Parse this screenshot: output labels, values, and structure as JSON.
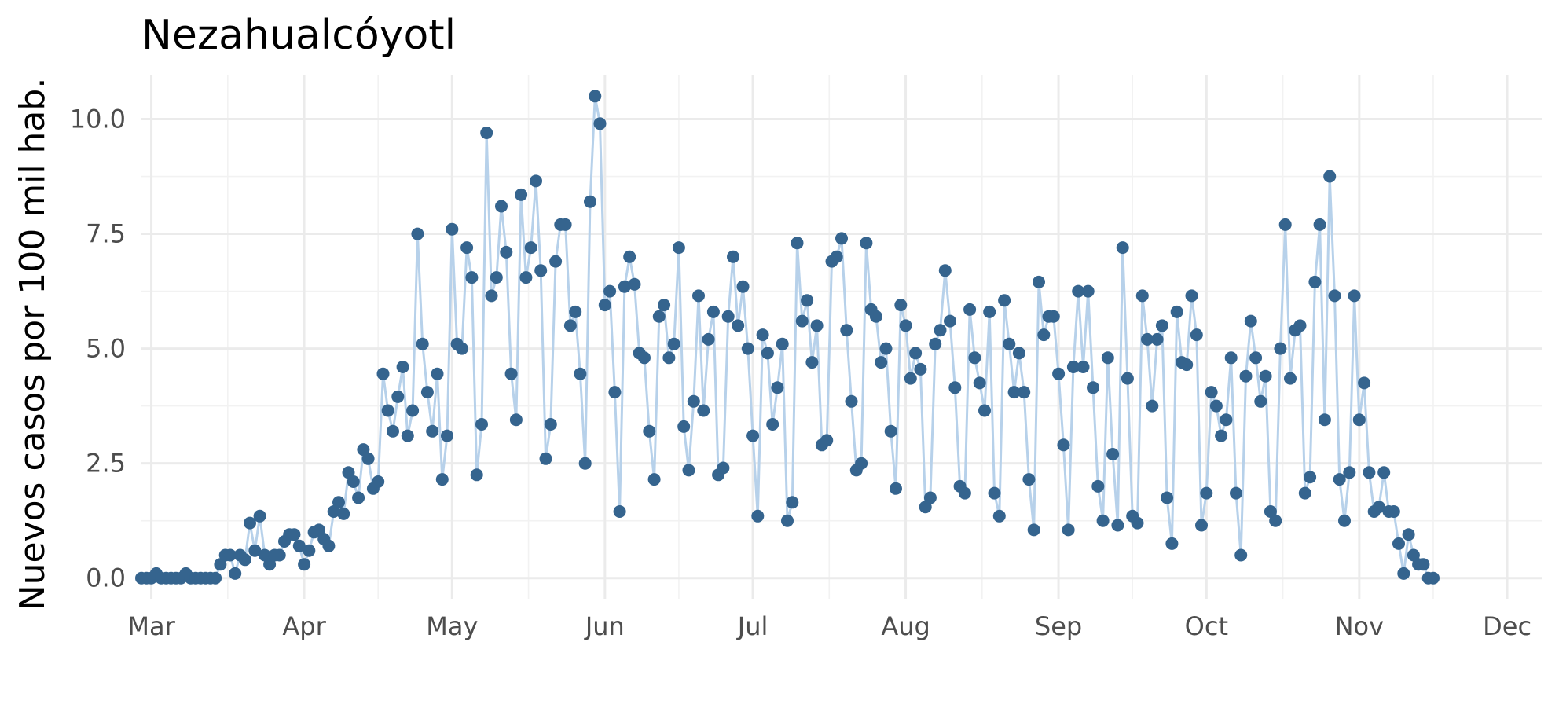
{
  "chart_data": {
    "type": "line",
    "title": "Nezahualcóyotl",
    "xlabel": "",
    "ylabel": "Nuevos casos por 100 mil hab.",
    "x_axis": {
      "type": "date",
      "range": [
        "2020-02-28",
        "2020-12-08"
      ],
      "tick_labels": [
        "Mar",
        "Apr",
        "May",
        "Jun",
        "Jul",
        "Aug",
        "Sep",
        "Oct",
        "Nov",
        "Dec"
      ],
      "tick_dates": [
        "2020-03-01",
        "2020-04-01",
        "2020-05-01",
        "2020-06-01",
        "2020-07-01",
        "2020-08-01",
        "2020-09-01",
        "2020-10-01",
        "2020-11-01",
        "2020-12-01"
      ]
    },
    "y_axis": {
      "range": [
        -0.45,
        10.95
      ],
      "ticks": [
        0,
        2.5,
        5,
        7.5,
        10
      ],
      "tick_labels": [
        "0.0",
        "2.5",
        "5.0",
        "7.5",
        "10.0"
      ]
    },
    "grid": true,
    "legend": "none",
    "colors": {
      "line": "#b7d1ea",
      "point": "#35648e"
    },
    "series": [
      {
        "x_start": "2020-02-28",
        "x_step_days": 1,
        "values": [
          0,
          0,
          0,
          0.1,
          0,
          0,
          0,
          0,
          0,
          0.1,
          0,
          0,
          0,
          0,
          0,
          0,
          0.3,
          0.5,
          0.5,
          0.1,
          0.5,
          0.4,
          1.2,
          0.6,
          1.35,
          0.5,
          0.3,
          0.5,
          0.5,
          0.8,
          0.95,
          0.95,
          0.7,
          0.3,
          0.6,
          1.0,
          1.05,
          0.85,
          0.7,
          1.45,
          1.65,
          1.4,
          2.3,
          2.1,
          1.75,
          2.8,
          2.6,
          1.95,
          2.1,
          4.45,
          3.65,
          3.2,
          3.95,
          4.6,
          3.1,
          3.65,
          7.5,
          5.1,
          4.05,
          3.2,
          4.45,
          2.15,
          3.1,
          7.6,
          5.1,
          5.0,
          7.2,
          6.55,
          2.25,
          3.35,
          9.7,
          6.15,
          6.55,
          8.1,
          7.1,
          4.45,
          3.45,
          8.35,
          6.55,
          7.2,
          8.65,
          6.7,
          2.6,
          3.35,
          6.9,
          7.7,
          7.7,
          5.5,
          5.8,
          4.45,
          2.5,
          8.2,
          10.5,
          9.9,
          5.95,
          6.25,
          4.05,
          1.45,
          6.35,
          7.0,
          6.4,
          4.9,
          4.8,
          3.2,
          2.15,
          5.7,
          5.95,
          4.8,
          5.1,
          7.2,
          3.3,
          2.35,
          3.85,
          6.15,
          3.65,
          5.2,
          5.8,
          2.25,
          2.4,
          5.7,
          7.0,
          5.5,
          6.35,
          5.0,
          3.1,
          1.35,
          5.3,
          4.9,
          3.35,
          4.15,
          5.1,
          1.25,
          1.65,
          7.3,
          5.6,
          6.05,
          4.7,
          5.5,
          2.9,
          3.0,
          6.9,
          7.0,
          7.4,
          5.4,
          3.85,
          2.35,
          2.5,
          7.3,
          5.85,
          5.7,
          4.7,
          5.0,
          3.2,
          1.95,
          5.95,
          5.5,
          4.35,
          4.9,
          4.55,
          1.55,
          1.75,
          5.1,
          5.4,
          6.7,
          5.6,
          4.15,
          2.0,
          1.85,
          5.85,
          4.8,
          4.25,
          3.65,
          5.8,
          1.85,
          1.35,
          6.05,
          5.1,
          4.05,
          4.9,
          4.05,
          2.15,
          1.05,
          6.45,
          5.3,
          5.7,
          5.7,
          4.45,
          2.9,
          1.05,
          4.6,
          6.25,
          4.6,
          6.25,
          4.15,
          2.0,
          1.25,
          4.8,
          2.7,
          1.15,
          7.2,
          4.35,
          1.35,
          1.2,
          6.15,
          5.2,
          3.75,
          5.2,
          5.5,
          1.75,
          0.75,
          5.8,
          4.7,
          4.65,
          6.15,
          5.3,
          1.15,
          1.85,
          4.05,
          3.75,
          3.1,
          3.45,
          4.8,
          1.85,
          0.5,
          4.4,
          5.6,
          4.8,
          3.85,
          4.4,
          1.45,
          1.25,
          5.0,
          7.7,
          4.35,
          5.4,
          5.5,
          1.85,
          2.2,
          6.45,
          7.7,
          3.45,
          8.75,
          6.15,
          2.15,
          1.25,
          2.3,
          6.15,
          3.45,
          4.25,
          2.3,
          1.45,
          1.55,
          2.3,
          1.45,
          1.45,
          0.75,
          0.1,
          0.95,
          0.5,
          0.3,
          0.3,
          0,
          0
        ]
      }
    ]
  }
}
